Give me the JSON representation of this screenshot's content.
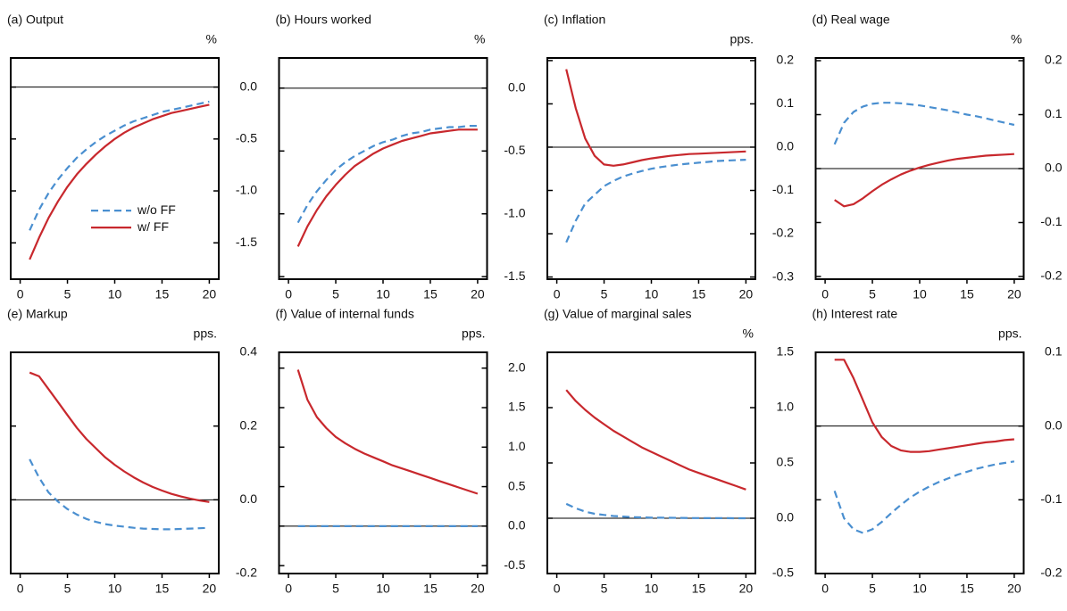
{
  "chart_data": [
    {
      "type": "line",
      "title": "(a) Output",
      "unit": "%",
      "legend": "center-right",
      "x": [
        1,
        2,
        3,
        4,
        5,
        6,
        7,
        8,
        9,
        10,
        11,
        12,
        13,
        14,
        15,
        16,
        17,
        18,
        19,
        20
      ],
      "xlim": [
        -1,
        21
      ],
      "xticks": [
        0,
        5,
        10,
        15,
        20
      ],
      "ylim": [
        -1.85,
        0.28
      ],
      "yticks": [
        {
          "value": 0,
          "label": "0.0"
        },
        -0.5,
        {
          "value": -1,
          "label": "-1.0"
        },
        -1.5
      ],
      "hline": 0,
      "series": [
        {
          "name": "w/o FF",
          "color": "#4a8fd0",
          "dashed": true,
          "values": [
            -1.38,
            -1.18,
            -1.02,
            -0.89,
            -0.78,
            -0.68,
            -0.6,
            -0.53,
            -0.47,
            -0.42,
            -0.37,
            -0.33,
            -0.3,
            -0.27,
            -0.24,
            -0.22,
            -0.2,
            -0.18,
            -0.16,
            -0.14
          ]
        },
        {
          "name": "w/ FF",
          "color": "#c8282d",
          "dashed": false,
          "values": [
            -1.66,
            -1.45,
            -1.26,
            -1.1,
            -0.96,
            -0.84,
            -0.74,
            -0.65,
            -0.57,
            -0.5,
            -0.44,
            -0.39,
            -0.35,
            -0.31,
            -0.28,
            -0.25,
            -0.23,
            -0.21,
            -0.19,
            -0.17
          ]
        }
      ]
    },
    {
      "type": "line",
      "title": "(b) Hours worked",
      "unit": "%",
      "x": [
        1,
        2,
        3,
        4,
        5,
        6,
        7,
        8,
        9,
        10,
        11,
        12,
        13,
        14,
        15,
        16,
        17,
        18,
        19,
        20
      ],
      "xlim": [
        -1,
        21
      ],
      "xticks": [
        0,
        5,
        10,
        15,
        20
      ],
      "ylim": [
        -1.52,
        0.24
      ],
      "yticks": [
        {
          "value": 0,
          "label": "0.0"
        },
        -0.5,
        {
          "value": -1,
          "label": "-1.0"
        },
        -1.5
      ],
      "hline": 0,
      "series": [
        {
          "color": "#4a8fd0",
          "dashed": true,
          "values": [
            -1.07,
            -0.93,
            -0.82,
            -0.73,
            -0.65,
            -0.59,
            -0.54,
            -0.5,
            -0.46,
            -0.43,
            -0.41,
            -0.38,
            -0.36,
            -0.35,
            -0.33,
            -0.32,
            -0.31,
            -0.31,
            -0.3,
            -0.3
          ]
        },
        {
          "color": "#c8282d",
          "dashed": false,
          "values": [
            -1.26,
            -1.1,
            -0.97,
            -0.86,
            -0.77,
            -0.69,
            -0.62,
            -0.57,
            -0.52,
            -0.48,
            -0.45,
            -0.42,
            -0.4,
            -0.38,
            -0.36,
            -0.35,
            -0.34,
            -0.33,
            -0.33,
            -0.33
          ]
        }
      ]
    },
    {
      "type": "line",
      "title": "(c) Inflation",
      "unit": "pps.",
      "x": [
        1,
        2,
        3,
        4,
        5,
        6,
        7,
        8,
        9,
        10,
        11,
        12,
        13,
        14,
        15,
        16,
        17,
        18,
        19,
        20
      ],
      "xlim": [
        -1,
        21
      ],
      "xticks": [
        0,
        5,
        10,
        15,
        20
      ],
      "ylim": [
        -0.305,
        0.206
      ],
      "yticks": [
        0.2,
        0.1,
        {
          "value": 0,
          "label": "0.0"
        },
        -0.1,
        -0.2,
        -0.3
      ],
      "hline": 0,
      "series": [
        {
          "color": "#4a8fd0",
          "dashed": true,
          "values": [
            -0.22,
            -0.17,
            -0.13,
            -0.11,
            -0.09,
            -0.078,
            -0.068,
            -0.061,
            -0.055,
            -0.05,
            -0.046,
            -0.043,
            -0.04,
            -0.038,
            -0.036,
            -0.034,
            -0.032,
            -0.031,
            -0.03,
            -0.029
          ]
        },
        {
          "color": "#c8282d",
          "dashed": false,
          "values": [
            0.18,
            0.09,
            0.02,
            -0.02,
            -0.04,
            -0.043,
            -0.04,
            -0.035,
            -0.03,
            -0.026,
            -0.023,
            -0.02,
            -0.018,
            -0.016,
            -0.015,
            -0.014,
            -0.013,
            -0.012,
            -0.011,
            -0.01
          ]
        }
      ]
    },
    {
      "type": "line",
      "title": "(d) Real wage",
      "unit": "%",
      "x": [
        1,
        2,
        3,
        4,
        5,
        6,
        7,
        8,
        9,
        10,
        11,
        12,
        13,
        14,
        15,
        16,
        17,
        18,
        19,
        20
      ],
      "xlim": [
        -1,
        21
      ],
      "xticks": [
        0,
        5,
        10,
        15,
        20
      ],
      "ylim": [
        -0.205,
        0.205
      ],
      "yticks": [
        0.2,
        0.1,
        {
          "value": 0,
          "label": "0.0"
        },
        -0.1,
        -0.2
      ],
      "hline": 0,
      "series": [
        {
          "color": "#4a8fd0",
          "dashed": true,
          "values": [
            0.045,
            0.085,
            0.105,
            0.115,
            0.12,
            0.122,
            0.122,
            0.121,
            0.119,
            0.117,
            0.114,
            0.111,
            0.108,
            0.104,
            0.1,
            0.097,
            0.093,
            0.089,
            0.085,
            0.081
          ]
        },
        {
          "color": "#c8282d",
          "dashed": false,
          "values": [
            -0.058,
            -0.07,
            -0.066,
            -0.055,
            -0.042,
            -0.03,
            -0.02,
            -0.011,
            -0.004,
            0.002,
            0.007,
            0.011,
            0.015,
            0.018,
            0.02,
            0.022,
            0.024,
            0.025,
            0.026,
            0.027
          ]
        }
      ]
    },
    {
      "type": "line",
      "title": "(e) Markup",
      "unit": "pps.",
      "x": [
        1,
        2,
        3,
        4,
        5,
        6,
        7,
        8,
        9,
        10,
        11,
        12,
        13,
        14,
        15,
        16,
        17,
        18,
        19,
        20
      ],
      "xlim": [
        -1,
        21
      ],
      "xticks": [
        0,
        5,
        10,
        15,
        20
      ],
      "ylim": [
        -0.2,
        0.4
      ],
      "yticks": [
        0.4,
        0.2,
        {
          "value": 0,
          "label": "0.0"
        },
        -0.2
      ],
      "hline": 0,
      "series": [
        {
          "color": "#4a8fd0",
          "dashed": true,
          "values": [
            0.11,
            0.06,
            0.02,
            -0.005,
            -0.025,
            -0.04,
            -0.052,
            -0.06,
            -0.066,
            -0.07,
            -0.073,
            -0.076,
            -0.078,
            -0.079,
            -0.08,
            -0.08,
            -0.079,
            -0.078,
            -0.077,
            -0.076
          ]
        },
        {
          "color": "#c8282d",
          "dashed": false,
          "values": [
            0.345,
            0.335,
            0.3,
            0.265,
            0.23,
            0.195,
            0.165,
            0.14,
            0.115,
            0.095,
            0.077,
            0.061,
            0.047,
            0.035,
            0.025,
            0.016,
            0.009,
            0.003,
            -0.002,
            -0.006
          ]
        }
      ]
    },
    {
      "type": "line",
      "title": "(f) Value of internal funds",
      "unit": "pps.",
      "x": [
        1,
        2,
        3,
        4,
        5,
        6,
        7,
        8,
        9,
        10,
        11,
        12,
        13,
        14,
        15,
        16,
        17,
        18,
        19,
        20
      ],
      "xlim": [
        -1,
        21
      ],
      "xticks": [
        0,
        5,
        10,
        15,
        20
      ],
      "ylim": [
        -0.6,
        2.2
      ],
      "yticks": [
        {
          "value": 2,
          "label": "2.0"
        },
        1.5,
        {
          "value": 1,
          "label": "1.0"
        },
        0.5,
        {
          "value": 0,
          "label": "0.0"
        },
        -0.5
      ],
      "hline": 0,
      "series": [
        {
          "color": "#4a8fd0",
          "dashed": true,
          "values": [
            0,
            0,
            0,
            0,
            0,
            0,
            0,
            0,
            0,
            0,
            0,
            0,
            0,
            0,
            0,
            0,
            0,
            0,
            0,
            0
          ]
        },
        {
          "color": "#c8282d",
          "dashed": false,
          "values": [
            1.98,
            1.6,
            1.38,
            1.24,
            1.13,
            1.05,
            0.98,
            0.92,
            0.87,
            0.82,
            0.77,
            0.73,
            0.69,
            0.65,
            0.61,
            0.57,
            0.53,
            0.49,
            0.45,
            0.41
          ]
        }
      ]
    },
    {
      "type": "line",
      "title": "(g) Value of marginal sales",
      "unit": "%",
      "x": [
        1,
        2,
        3,
        4,
        5,
        6,
        7,
        8,
        9,
        10,
        11,
        12,
        13,
        14,
        15,
        16,
        17,
        18,
        19,
        20
      ],
      "xlim": [
        -1,
        21
      ],
      "xticks": [
        0,
        5,
        10,
        15,
        20
      ],
      "ylim": [
        -0.5,
        1.5
      ],
      "yticks": [
        1.5,
        {
          "value": 1,
          "label": "1.0"
        },
        0.5,
        {
          "value": 0,
          "label": "0.0"
        },
        -0.5
      ],
      "hline": 0,
      "series": [
        {
          "color": "#4a8fd0",
          "dashed": true,
          "values": [
            0.13,
            0.09,
            0.06,
            0.04,
            0.03,
            0.02,
            0.015,
            0.01,
            0.008,
            0.006,
            0.005,
            0.004,
            0.003,
            0.002,
            0.002,
            0.001,
            0.001,
            0.001,
            0,
            0
          ]
        },
        {
          "color": "#c8282d",
          "dashed": false,
          "values": [
            1.16,
            1.06,
            0.98,
            0.91,
            0.85,
            0.79,
            0.74,
            0.69,
            0.64,
            0.6,
            0.56,
            0.52,
            0.48,
            0.44,
            0.41,
            0.38,
            0.35,
            0.32,
            0.29,
            0.26
          ]
        }
      ]
    },
    {
      "type": "line",
      "title": "(h) Interest rate",
      "unit": "pps.",
      "x": [
        1,
        2,
        3,
        4,
        5,
        6,
        7,
        8,
        9,
        10,
        11,
        12,
        13,
        14,
        15,
        16,
        17,
        18,
        19,
        20
      ],
      "xlim": [
        -1,
        21
      ],
      "xticks": [
        0,
        5,
        10,
        15,
        20
      ],
      "ylim": [
        -0.2,
        0.1
      ],
      "yticks": [
        0.1,
        {
          "value": 0,
          "label": "0.0"
        },
        -0.1,
        -0.2
      ],
      "hline": 0,
      "series": [
        {
          "color": "#4a8fd0",
          "dashed": true,
          "values": [
            -0.088,
            -0.125,
            -0.14,
            -0.145,
            -0.14,
            -0.13,
            -0.118,
            -0.107,
            -0.097,
            -0.089,
            -0.082,
            -0.076,
            -0.071,
            -0.066,
            -0.062,
            -0.058,
            -0.055,
            -0.052,
            -0.05,
            -0.048
          ]
        },
        {
          "color": "#c8282d",
          "dashed": false,
          "values": [
            0.09,
            0.09,
            0.065,
            0.035,
            0.005,
            -0.015,
            -0.027,
            -0.033,
            -0.035,
            -0.035,
            -0.034,
            -0.032,
            -0.03,
            -0.028,
            -0.026,
            -0.024,
            -0.022,
            -0.021,
            -0.019,
            -0.018
          ]
        }
      ]
    }
  ]
}
